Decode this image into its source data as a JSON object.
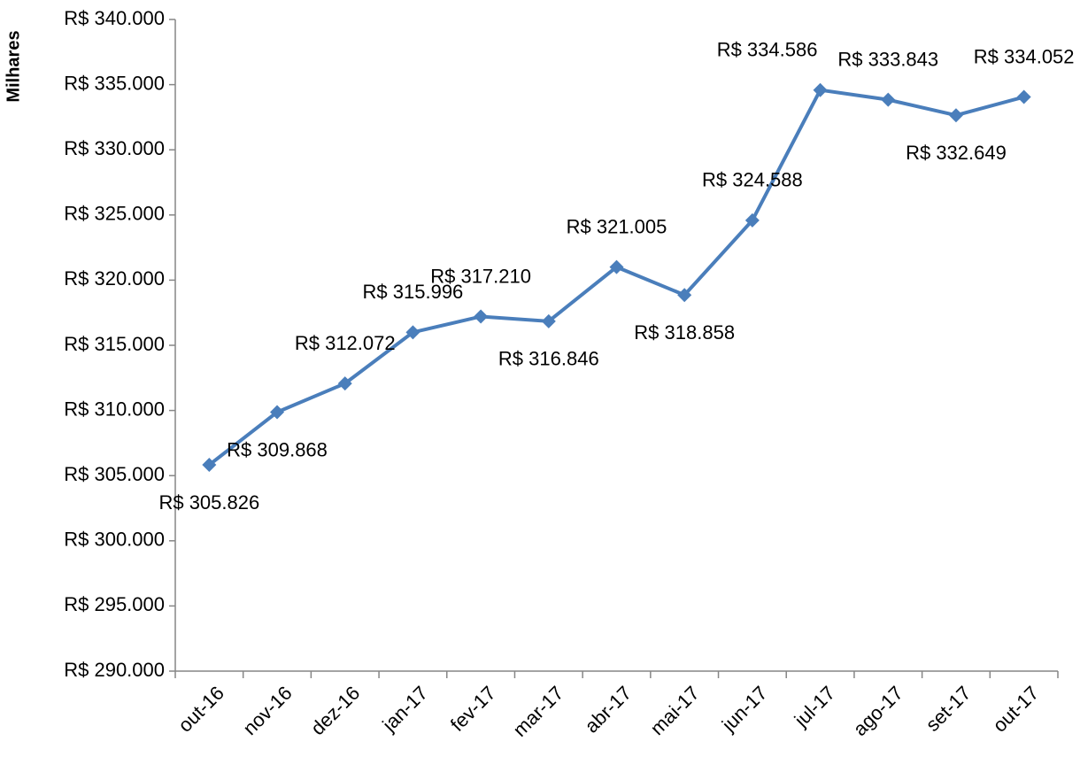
{
  "chart_data": {
    "type": "line",
    "y_label": "Milhares",
    "categories": [
      "out-16",
      "nov-16",
      "dez-16",
      "jan-17",
      "fev-17",
      "mar-17",
      "abr-17",
      "mai-17",
      "jun-17",
      "jul-17",
      "ago-17",
      "set-17",
      "out-17"
    ],
    "series": [
      {
        "name": "Milhares",
        "color": "#4a7ebb",
        "values": [
          305826,
          309868,
          312072,
          315996,
          317210,
          316846,
          321005,
          318858,
          324588,
          334586,
          333843,
          332649,
          334052
        ],
        "value_labels": [
          "R$ 305.826",
          "R$ 309.868",
          "R$ 312.072",
          "R$ 315.996",
          "R$ 317.210",
          "R$ 316.846",
          "R$ 321.005",
          "R$ 318.858",
          "R$ 324.588",
          "R$ 334.586",
          "R$ 333.843",
          "R$ 332.649",
          "R$ 334.052"
        ]
      }
    ],
    "ylim": [
      290000,
      340000
    ],
    "yticks": [
      {
        "value": 290000,
        "label": "R$ 290.000"
      },
      {
        "value": 295000,
        "label": "R$ 295.000"
      },
      {
        "value": 300000,
        "label": "R$ 300.000"
      },
      {
        "value": 305000,
        "label": "R$ 305.000"
      },
      {
        "value": 310000,
        "label": "R$ 310.000"
      },
      {
        "value": 315000,
        "label": "R$ 315.000"
      },
      {
        "value": 320000,
        "label": "R$ 320.000"
      },
      {
        "value": 325000,
        "label": "R$ 325.000"
      },
      {
        "value": 330000,
        "label": "R$ 330.000"
      },
      {
        "value": 335000,
        "label": "R$ 335.000"
      },
      {
        "value": 340000,
        "label": "R$ 340.000"
      }
    ],
    "grid": false
  }
}
